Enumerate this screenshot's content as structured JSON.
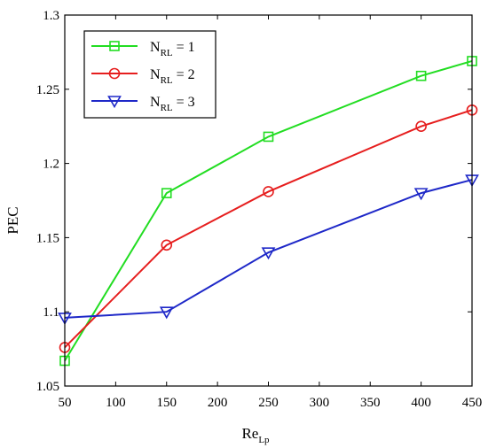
{
  "chart_data": {
    "type": "line",
    "xlabel": "Re",
    "xlabel_sub": "Lp",
    "ylabel": "PEC",
    "xlim": [
      50,
      450
    ],
    "ylim": [
      1.05,
      1.3
    ],
    "xticks": [
      50,
      100,
      150,
      200,
      250,
      300,
      350,
      400,
      450
    ],
    "xtick_labels": [
      "50",
      "100",
      "150",
      "200",
      "250",
      "300",
      "350",
      "400",
      "450"
    ],
    "yticks": [
      1.05,
      1.1,
      1.15,
      1.2,
      1.25,
      1.3
    ],
    "ytick_labels": [
      "1.05",
      "1.1",
      "1.15",
      "1.2",
      "1.25",
      "1.3"
    ],
    "grid": false,
    "legend_position": "top-left",
    "series": [
      {
        "name": "N_RL = 1",
        "legend_main": "N",
        "legend_sub": "RL",
        "legend_eq": " = 1",
        "color": "#22dd22",
        "marker": "square",
        "x": [
          50,
          150,
          250,
          400,
          450
        ],
        "y": [
          1.067,
          1.18,
          1.218,
          1.259,
          1.269
        ]
      },
      {
        "name": "N_RL = 2",
        "legend_main": "N",
        "legend_sub": "RL",
        "legend_eq": " = 2",
        "color": "#e61e1e",
        "marker": "circle",
        "x": [
          50,
          150,
          250,
          400,
          450
        ],
        "y": [
          1.076,
          1.145,
          1.181,
          1.225,
          1.236
        ]
      },
      {
        "name": "N_RL = 3",
        "legend_main": "N",
        "legend_sub": "RL",
        "legend_eq": " = 3",
        "color": "#1e28c8",
        "marker": "triangle-down",
        "x": [
          50,
          150,
          250,
          400,
          450
        ],
        "y": [
          1.096,
          1.1,
          1.14,
          1.18,
          1.189
        ]
      }
    ]
  }
}
